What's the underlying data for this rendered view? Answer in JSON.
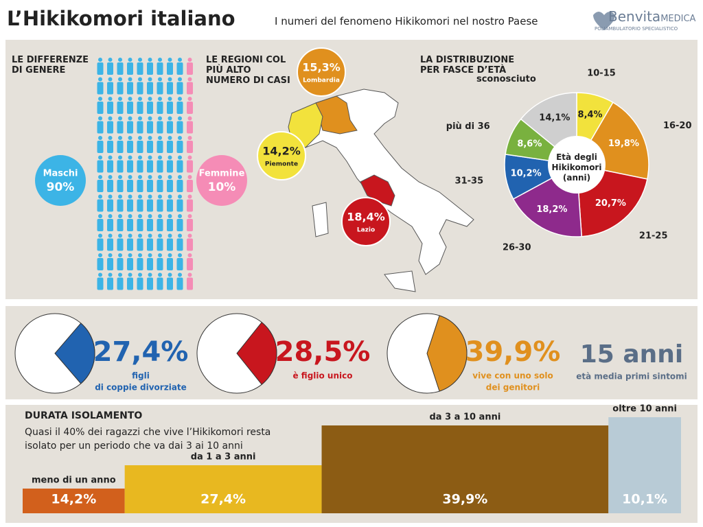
{
  "header": {
    "title": "L’Hikikomori italiano",
    "subtitle": "I numeri del fenomeno Hikikomori nel nostro Paese",
    "brand": "Benvita",
    "brand_suffix": "MEDICA",
    "brand_tagline": "POLIAMBULATORIO SPECIALISTICO"
  },
  "chart_data": [
    {
      "type": "pictogram",
      "title": "LE DIFFERENZE DI GENERE",
      "series": [
        {
          "name": "Maschi",
          "color": "#3cb4e6",
          "values": [
            90
          ],
          "value_labels": [
            "90%"
          ]
        },
        {
          "name": "Femmine",
          "color": "#f58cb6",
          "values": [
            10
          ],
          "value_labels": [
            "10%"
          ]
        }
      ]
    },
    {
      "type": "map",
      "title": "LE REGIONI COL PIÙ ALTO NUMERO DI CASI",
      "categories": [
        "Lombardia",
        "Piemonte",
        "Lazio"
      ],
      "values": [
        15.3,
        14.2,
        18.4
      ],
      "value_labels": [
        "15,3%",
        "14,2%",
        "18,4%"
      ],
      "colors": [
        "#e0901e",
        "#f2e23c",
        "#c8161e"
      ]
    },
    {
      "type": "pie",
      "title": "LA DISTRIBUZIONE PER FASCE D’ETÀ",
      "center_label": "Età degli Hikikomori (anni)",
      "categories": [
        "10-15",
        "16-20",
        "21-25",
        "26-30",
        "31-35",
        "più di 36",
        "sconosciuto"
      ],
      "values": [
        8.4,
        19.8,
        20.7,
        18.2,
        10.2,
        8.6,
        14.1
      ],
      "value_labels": [
        "8,4%",
        "19,8%",
        "20,7%",
        "18,2%",
        "10,2%",
        "8,6%",
        "14,1%"
      ],
      "colors": [
        "#f2e23c",
        "#e0901e",
        "#c8161e",
        "#8e2a8c",
        "#2163b0",
        "#79b13f",
        "#cfcfcf"
      ]
    },
    {
      "type": "stat",
      "values": [
        27.4,
        28.5,
        39.9,
        15
      ],
      "value_labels": [
        "27,4%",
        "28,5%",
        "39,9%",
        "15 anni"
      ],
      "captions": [
        [
          "figli",
          "di coppie divorziate"
        ],
        [
          "è figlio unico"
        ],
        [
          "vive con uno solo",
          "dei genitori"
        ],
        [
          "età media primi sintomi"
        ]
      ],
      "colors": [
        "#2163b0",
        "#c8161e",
        "#e0901e",
        "#5a6e87"
      ]
    },
    {
      "type": "bar",
      "title": "DURATA ISOLAMENTO",
      "subtitle": "Quasi il 40% dei ragazzi che vive l’Hikikomori resta isolato per un periodo che va dai 3 ai 10 anni",
      "categories": [
        "meno di un anno",
        "da 1 a 3 anni",
        "da 3 a 10 anni",
        "oltre 10 anni"
      ],
      "values": [
        14.2,
        27.4,
        39.9,
        10.1
      ],
      "value_labels": [
        "14,2%",
        "27,4%",
        "39,9%",
        "10,1%"
      ],
      "colors": [
        "#d2601c",
        "#e8b820",
        "#8c5c14",
        "#b8cbd6"
      ]
    }
  ]
}
